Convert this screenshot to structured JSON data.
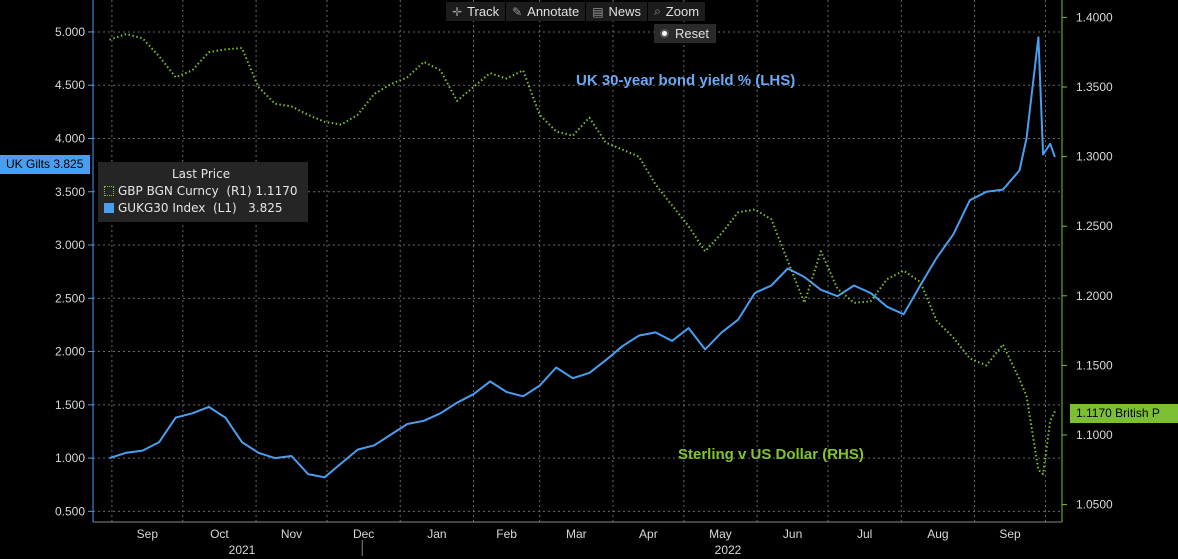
{
  "toolbar": {
    "items": [
      {
        "label": "Track",
        "icon": "crosshair-icon"
      },
      {
        "label": "Annotate",
        "icon": "pencil-icon"
      },
      {
        "label": "News",
        "icon": "news-icon"
      },
      {
        "label": "Zoom",
        "icon": "magnifier-icon"
      }
    ],
    "reset_label": "Reset"
  },
  "legend": {
    "title": "Last Price",
    "rows": [
      {
        "text": "GBP BGN Curncy  (R1) 1.1170"
      },
      {
        "text": "GUKG30 Index  (L1)   3.825"
      }
    ]
  },
  "annotations": {
    "bond": "UK 30-year bond yield % (LHS)",
    "fx": "Sterling v US Dollar (RHS)"
  },
  "tags": {
    "left": "UK Gilts 3.825",
    "right": "1.1170 British P"
  },
  "colors": {
    "blue": "#4a9ef0",
    "green": "#7cbf30",
    "ann_blue": "#6aaaf5",
    "ann_green": "#82c42e",
    "grid": "#6a6a6a"
  },
  "chart_data": {
    "type": "line",
    "grid": true,
    "x_months": [
      "Sep",
      "Oct",
      "Nov",
      "Dec",
      "Jan",
      "Feb",
      "Mar",
      "Apr",
      "May",
      "Jun",
      "Jul",
      "Aug",
      "Sep"
    ],
    "x_years": [
      "2021",
      "2022"
    ],
    "y_left": {
      "ticks": [
        "0.500",
        "1.000",
        "1.500",
        "2.000",
        "2.500",
        "3.000",
        "3.500",
        "4.000",
        "4.500",
        "5.000"
      ],
      "range": [
        0.4,
        5.3
      ]
    },
    "y_right": {
      "ticks": [
        "1.0500",
        "1.1000",
        "1.1500",
        "1.2000",
        "1.2500",
        "1.3000",
        "1.3500",
        "1.4000"
      ],
      "range": [
        1.0375,
        1.4125
      ]
    },
    "series": [
      {
        "name": "GUKG30 Index",
        "axis": "left",
        "style": "solid",
        "x": [
          "2021-08-31",
          "2021-09-07",
          "2021-09-14",
          "2021-09-21",
          "2021-09-28",
          "2021-10-05",
          "2021-10-12",
          "2021-10-19",
          "2021-10-26",
          "2021-11-02",
          "2021-11-09",
          "2021-11-16",
          "2021-11-23",
          "2021-11-30",
          "2021-12-07",
          "2021-12-14",
          "2021-12-21",
          "2021-12-28",
          "2022-01-04",
          "2022-01-11",
          "2022-01-18",
          "2022-01-25",
          "2022-02-01",
          "2022-02-08",
          "2022-02-15",
          "2022-02-22",
          "2022-03-01",
          "2022-03-08",
          "2022-03-15",
          "2022-03-22",
          "2022-03-29",
          "2022-04-05",
          "2022-04-12",
          "2022-04-19",
          "2022-04-26",
          "2022-05-03",
          "2022-05-10",
          "2022-05-17",
          "2022-05-24",
          "2022-05-31",
          "2022-06-07",
          "2022-06-14",
          "2022-06-21",
          "2022-06-28",
          "2022-07-05",
          "2022-07-12",
          "2022-07-19",
          "2022-07-26",
          "2022-08-02",
          "2022-08-09",
          "2022-08-16",
          "2022-08-23",
          "2022-08-30",
          "2022-09-06",
          "2022-09-13",
          "2022-09-20",
          "2022-09-23",
          "2022-09-28",
          "2022-09-30",
          "2022-10-03",
          "2022-10-05"
        ],
        "values": [
          1.0,
          1.05,
          1.07,
          1.15,
          1.38,
          1.42,
          1.48,
          1.38,
          1.15,
          1.05,
          1.0,
          1.02,
          0.85,
          0.82,
          0.95,
          1.08,
          1.12,
          1.22,
          1.32,
          1.35,
          1.42,
          1.52,
          1.6,
          1.72,
          1.62,
          1.58,
          1.68,
          1.85,
          1.75,
          1.8,
          1.92,
          2.05,
          2.15,
          2.18,
          2.1,
          2.22,
          2.02,
          2.18,
          2.3,
          2.55,
          2.62,
          2.78,
          2.7,
          2.58,
          2.52,
          2.62,
          2.55,
          2.42,
          2.35,
          2.62,
          2.88,
          3.1,
          3.42,
          3.5,
          3.52,
          3.7,
          4.0,
          4.95,
          3.85,
          3.95,
          3.825
        ]
      },
      {
        "name": "GBP BGN Curncy",
        "axis": "right",
        "style": "dotted",
        "x": [
          "2021-08-31",
          "2021-09-07",
          "2021-09-14",
          "2021-09-21",
          "2021-09-28",
          "2021-10-05",
          "2021-10-12",
          "2021-10-19",
          "2021-10-26",
          "2021-11-02",
          "2021-11-09",
          "2021-11-16",
          "2021-11-23",
          "2021-11-30",
          "2021-12-07",
          "2021-12-14",
          "2021-12-21",
          "2021-12-28",
          "2022-01-04",
          "2022-01-11",
          "2022-01-18",
          "2022-01-25",
          "2022-02-01",
          "2022-02-08",
          "2022-02-15",
          "2022-02-22",
          "2022-03-01",
          "2022-03-08",
          "2022-03-15",
          "2022-03-22",
          "2022-03-29",
          "2022-04-05",
          "2022-04-12",
          "2022-04-19",
          "2022-04-26",
          "2022-05-03",
          "2022-05-10",
          "2022-05-17",
          "2022-05-24",
          "2022-05-31",
          "2022-06-07",
          "2022-06-14",
          "2022-06-21",
          "2022-06-28",
          "2022-07-05",
          "2022-07-12",
          "2022-07-19",
          "2022-07-26",
          "2022-08-02",
          "2022-08-09",
          "2022-08-16",
          "2022-08-23",
          "2022-08-30",
          "2022-09-06",
          "2022-09-13",
          "2022-09-20",
          "2022-09-23",
          "2022-09-28",
          "2022-09-30",
          "2022-10-03",
          "2022-10-05"
        ],
        "values": [
          1.384,
          1.388,
          1.385,
          1.372,
          1.357,
          1.362,
          1.375,
          1.377,
          1.378,
          1.35,
          1.338,
          1.336,
          1.33,
          1.325,
          1.323,
          1.33,
          1.345,
          1.352,
          1.357,
          1.368,
          1.362,
          1.34,
          1.35,
          1.36,
          1.356,
          1.362,
          1.33,
          1.318,
          1.315,
          1.328,
          1.31,
          1.305,
          1.3,
          1.28,
          1.265,
          1.25,
          1.232,
          1.245,
          1.26,
          1.262,
          1.255,
          1.225,
          1.195,
          1.232,
          1.205,
          1.195,
          1.196,
          1.212,
          1.218,
          1.21,
          1.182,
          1.17,
          1.155,
          1.15,
          1.165,
          1.14,
          1.128,
          1.075,
          1.072,
          1.11,
          1.117
        ]
      }
    ]
  }
}
